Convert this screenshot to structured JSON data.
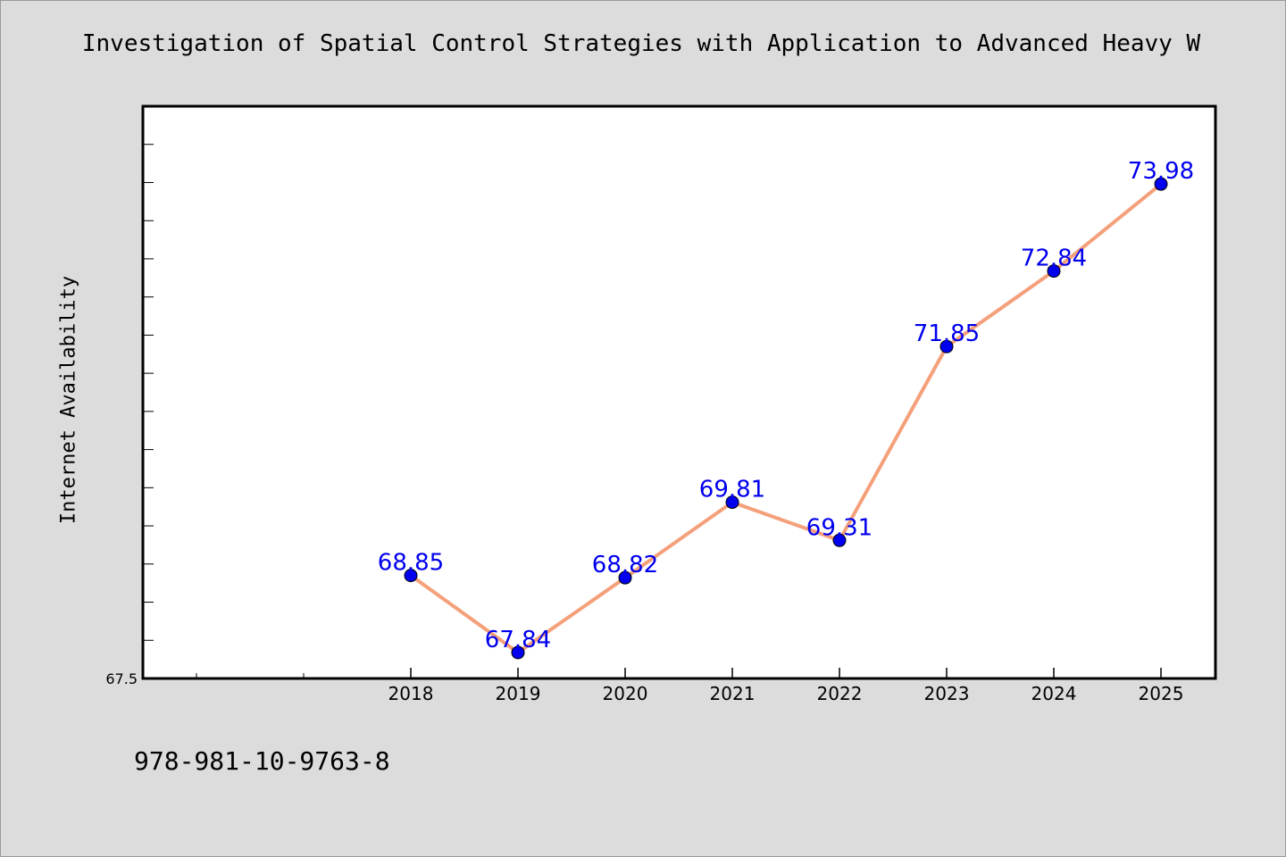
{
  "chart_data": {
    "type": "line",
    "title": "Investigation of Spatial Control Strategies with Application to Advanced Heavy W",
    "xlabel": "",
    "ylabel": "Internet Availability",
    "categories": [
      "2018",
      "2019",
      "2020",
      "2021",
      "2022",
      "2023",
      "2024",
      "2025"
    ],
    "values": [
      68.85,
      67.84,
      68.82,
      69.81,
      69.31,
      71.85,
      72.84,
      73.98
    ],
    "data_labels": [
      "68.85",
      "67.84",
      "68.82",
      "69.81",
      "69.31",
      "71.85",
      "72.84",
      "73.98"
    ],
    "ylim": [
      67.5,
      75.0
    ],
    "ytick_labels": [
      "67.5"
    ],
    "grid": false,
    "line_color": "#f4a07a",
    "marker_color": "#0000ee",
    "label_color": "#0000ee"
  },
  "footer": {
    "code": "978-981-10-9763-8"
  }
}
